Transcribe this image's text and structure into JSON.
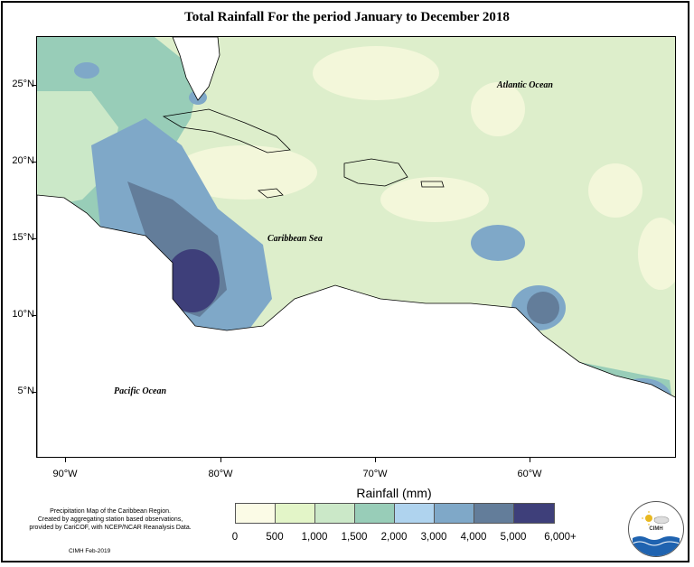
{
  "title": "Total Rainfall For the period January to December 2018",
  "map": {
    "lat_labels": [
      "25°N",
      "20°N",
      "15°N",
      "10°N",
      "5°N"
    ],
    "lon_labels": [
      "90°W",
      "80°W",
      "70°W",
      "60°W"
    ],
    "ocean_labels": [
      "Atlantic Ocean",
      "Caribbean Sea",
      "Pacific Ocean"
    ]
  },
  "legend": {
    "title": "Rainfall (mm)",
    "labels": [
      "0",
      "500",
      "1,000",
      "1,500",
      "2,000",
      "3,000",
      "4,000",
      "5,000",
      "6,000+"
    ],
    "colors": [
      "#fbfbe6",
      "#e3f5c8",
      "#cbe8c8",
      "#98cdb8",
      "#afd3ee",
      "#7fa8c8",
      "#637d9a",
      "#3e3f7a"
    ]
  },
  "note": {
    "lines": [
      "Precipitation Map of the Caribbean Region.",
      "Created by aggregating station based observations,",
      "provided by CariCOF, with NCEP/NCAR Reanalysis Data."
    ],
    "credit": "CIMH Feb-2019"
  },
  "logo": {
    "text": "CIMH",
    "icon": "cimh-logo-icon"
  }
}
